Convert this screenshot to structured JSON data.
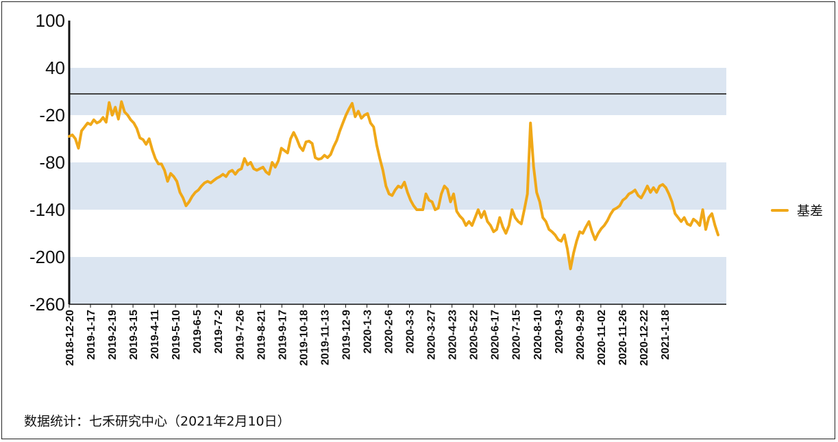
{
  "footer_note": "数据统计：七禾研究中心（2021年2月10日）",
  "colors": {
    "series": "#f0a818",
    "band": "#dbe5f1",
    "refline": "#444444"
  },
  "chart_data": {
    "type": "line",
    "title": "",
    "xlabel": "",
    "ylabel": "",
    "ylim": [
      -260,
      100
    ],
    "yticks": [
      100,
      40,
      -20,
      -80,
      -140,
      -200,
      -260
    ],
    "reference_line_y": 7,
    "shaded_bands": [
      [
        -20,
        40
      ],
      [
        -140,
        -80
      ],
      [
        -260,
        -200
      ]
    ],
    "legend_position": "right",
    "x_tick_labels": [
      "2018-12-20",
      "2019-1-17",
      "2019-2-19",
      "2019-3-15",
      "2019-4-11",
      "2019-5-10",
      "2019-6-5",
      "2019-7-2",
      "2019-7-26",
      "2019-8-21",
      "2019-9-17",
      "2019-10-18",
      "2019-11-13",
      "2019-12-9",
      "2020-1-3",
      "2020-2-6",
      "2020-3-3",
      "2020-3-27",
      "2020-4-23",
      "2020-5-22",
      "2020-6-17",
      "2020-7-15",
      "2020-8-10",
      "2020-9-3",
      "2020-9-29",
      "2020-11-02",
      "2020-11-26",
      "2020-12-22",
      "2021-1-18"
    ],
    "series": [
      {
        "name": "基差",
        "values": [
          -47,
          -45,
          -50,
          -62,
          -40,
          -35,
          -30,
          -32,
          -26,
          -30,
          -28,
          -23,
          -29,
          -4,
          -20,
          -10,
          -25,
          -3,
          -16,
          -20,
          -26,
          -30,
          -37,
          -49,
          -51,
          -57,
          -50,
          -64,
          -75,
          -82,
          -82,
          -90,
          -104,
          -94,
          -98,
          -104,
          -118,
          -125,
          -135,
          -130,
          -123,
          -118,
          -115,
          -110,
          -106,
          -104,
          -106,
          -103,
          -100,
          -98,
          -95,
          -98,
          -92,
          -90,
          -95,
          -90,
          -88,
          -75,
          -83,
          -80,
          -88,
          -90,
          -88,
          -86,
          -92,
          -95,
          -80,
          -86,
          -78,
          -62,
          -65,
          -68,
          -50,
          -42,
          -50,
          -60,
          -65,
          -54,
          -53,
          -56,
          -74,
          -76,
          -75,
          -71,
          -74,
          -70,
          -60,
          -52,
          -40,
          -30,
          -20,
          -12,
          -5,
          -22,
          -15,
          -24,
          -20,
          -18,
          -30,
          -35,
          -58,
          -75,
          -90,
          -110,
          -120,
          -122,
          -115,
          -110,
          -112,
          -105,
          -118,
          -128,
          -135,
          -140,
          -140,
          -140,
          -120,
          -128,
          -130,
          -140,
          -138,
          -120,
          -110,
          -114,
          -130,
          -120,
          -142,
          -148,
          -152,
          -160,
          -155,
          -160,
          -150,
          -140,
          -150,
          -142,
          -155,
          -160,
          -168,
          -165,
          -150,
          -162,
          -170,
          -160,
          -140,
          -150,
          -155,
          -158,
          -140,
          -120,
          -30,
          -85,
          -118,
          -130,
          -150,
          -155,
          -165,
          -168,
          -172,
          -178,
          -180,
          -172,
          -190,
          -215,
          -195,
          -180,
          -168,
          -170,
          -162,
          -155,
          -168,
          -178,
          -170,
          -164,
          -160,
          -154,
          -146,
          -140,
          -138,
          -135,
          -128,
          -125,
          -120,
          -118,
          -115,
          -122,
          -125,
          -118,
          -110,
          -118,
          -112,
          -118,
          -110,
          -108,
          -112,
          -120,
          -130,
          -145,
          -150,
          -155,
          -150,
          -158,
          -160,
          -152,
          -155,
          -160,
          -140,
          -165,
          -150,
          -145,
          -160,
          -172
        ]
      }
    ]
  }
}
